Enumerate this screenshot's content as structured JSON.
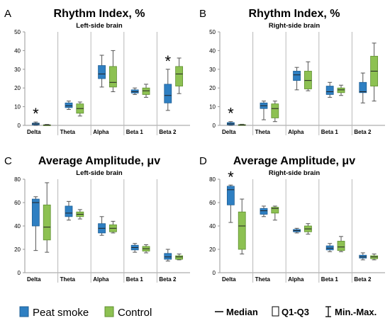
{
  "legend": {
    "peat_smoke": "Peat smoke",
    "control": "Control",
    "median": "Median",
    "quartiles": "Q1-Q3",
    "minmax": "Min.-Max."
  },
  "colors": {
    "peat_smoke": "#2e7fc2",
    "control": "#8dc152",
    "divider": "#b8b8b8",
    "axis": "#999999"
  },
  "chart_data": [
    {
      "panel_letter": "A",
      "type": "boxplot",
      "title": "Rhythm Index, %",
      "subtitle": "Left-side brain",
      "categories": [
        "Delta",
        "Theta",
        "Alpha",
        "Beta 1",
        "Beta 2"
      ],
      "ylim": [
        0,
        50
      ],
      "yticks": [
        0,
        10,
        20,
        30,
        40,
        50
      ],
      "significance": [
        "*",
        "",
        "",
        "",
        "*"
      ],
      "series": [
        {
          "name": "Peat smoke",
          "boxes": [
            {
              "min": 0,
              "q1": 0.3,
              "median": 0.8,
              "q3": 1.2,
              "max": 1.8
            },
            {
              "min": 8.5,
              "q1": 9.5,
              "median": 10.5,
              "q3": 12,
              "max": 13
            },
            {
              "min": 20.5,
              "q1": 25,
              "median": 27.5,
              "q3": 32,
              "max": 37.5
            },
            {
              "min": 16.5,
              "q1": 17.3,
              "median": 18,
              "q3": 19,
              "max": 20
            },
            {
              "min": 8,
              "q1": 12,
              "median": 16,
              "q3": 22,
              "max": 30
            }
          ]
        },
        {
          "name": "Control",
          "boxes": [
            {
              "min": 0,
              "q1": 0.1,
              "median": 0.2,
              "q3": 0.3,
              "max": 0.5
            },
            {
              "min": 5,
              "q1": 6.5,
              "median": 9,
              "q3": 11.5,
              "max": 12.5
            },
            {
              "min": 18,
              "q1": 20.5,
              "median": 23,
              "q3": 31.5,
              "max": 40
            },
            {
              "min": 15,
              "q1": 16.5,
              "median": 18.5,
              "q3": 20,
              "max": 22
            },
            {
              "min": 17,
              "q1": 21,
              "median": 27.5,
              "q3": 31.5,
              "max": 36
            }
          ]
        }
      ]
    },
    {
      "panel_letter": "B",
      "type": "boxplot",
      "title": "Rhythm Index, %",
      "subtitle": "Right-side brain",
      "categories": [
        "Delta",
        "Theta",
        "Alpha",
        "Beta 1",
        "Beta 2"
      ],
      "ylim": [
        0,
        50
      ],
      "yticks": [
        0,
        10,
        20,
        30,
        40,
        50
      ],
      "significance": [
        "*",
        "",
        "",
        "",
        ""
      ],
      "series": [
        {
          "name": "Peat smoke",
          "boxes": [
            {
              "min": 0,
              "q1": 0.3,
              "median": 0.8,
              "q3": 1.5,
              "max": 2
            },
            {
              "min": 3,
              "q1": 9,
              "median": 10.5,
              "q3": 12,
              "max": 13
            },
            {
              "min": 19,
              "q1": 24,
              "median": 27,
              "q3": 29,
              "max": 31
            },
            {
              "min": 15,
              "q1": 16.5,
              "median": 18,
              "q3": 21,
              "max": 23
            },
            {
              "min": 12,
              "q1": 17.5,
              "median": 18,
              "q3": 23,
              "max": 28
            }
          ]
        },
        {
          "name": "Control",
          "boxes": [
            {
              "min": 0,
              "q1": 0.1,
              "median": 0.2,
              "q3": 0.4,
              "max": 0.6
            },
            {
              "min": 2,
              "q1": 4,
              "median": 9,
              "q3": 11.5,
              "max": 13
            },
            {
              "min": 18.5,
              "q1": 19.5,
              "median": 24,
              "q3": 29,
              "max": 34
            },
            {
              "min": 16,
              "q1": 17.5,
              "median": 19,
              "q3": 20,
              "max": 21.5
            },
            {
              "min": 13,
              "q1": 21,
              "median": 29,
              "q3": 37,
              "max": 44
            }
          ]
        }
      ]
    },
    {
      "panel_letter": "C",
      "type": "boxplot",
      "title": "Average Amplitude, μv",
      "subtitle": "Left-side brain",
      "categories": [
        "Delta",
        "Theta",
        "Alpha",
        "Beta 1",
        "Beta 2"
      ],
      "ylim": [
        0,
        80
      ],
      "yticks": [
        0,
        20,
        40,
        60,
        80
      ],
      "significance": [
        "",
        "",
        "",
        "",
        ""
      ],
      "series": [
        {
          "name": "Peat smoke",
          "boxes": [
            {
              "min": 19,
              "q1": 40,
              "median": 60,
              "q3": 63,
              "max": 65
            },
            {
              "min": 45,
              "q1": 48,
              "median": 51,
              "q3": 57,
              "max": 61
            },
            {
              "min": 32,
              "q1": 34,
              "median": 38,
              "q3": 42,
              "max": 48
            },
            {
              "min": 17.5,
              "q1": 19.5,
              "median": 21.5,
              "q3": 23.5,
              "max": 25
            },
            {
              "min": 10,
              "q1": 11.5,
              "median": 13.5,
              "q3": 16.5,
              "max": 20
            }
          ]
        },
        {
          "name": "Control",
          "boxes": [
            {
              "min": 17.5,
              "q1": 28,
              "median": 39,
              "q3": 58,
              "max": 77
            },
            {
              "min": 46,
              "q1": 48,
              "median": 50,
              "q3": 52,
              "max": 54
            },
            {
              "min": 34,
              "q1": 35,
              "median": 38,
              "q3": 41,
              "max": 44
            },
            {
              "min": 17,
              "q1": 18.5,
              "median": 20.5,
              "q3": 22.5,
              "max": 24
            },
            {
              "min": 11,
              "q1": 11.5,
              "median": 13.5,
              "q3": 14.5,
              "max": 16
            }
          ]
        }
      ]
    },
    {
      "panel_letter": "D",
      "type": "boxplot",
      "title": "Average Amplitude, μv",
      "subtitle": "Right-side brain",
      "categories": [
        "Delta",
        "Theta",
        "Alpha",
        "Beta 1",
        "Beta 2"
      ],
      "ylim": [
        0,
        80
      ],
      "yticks": [
        0,
        20,
        40,
        60,
        80
      ],
      "significance": [
        "*",
        "",
        "",
        "",
        ""
      ],
      "series": [
        {
          "name": "Peat smoke",
          "boxes": [
            {
              "min": 43,
              "q1": 58,
              "median": 71,
              "q3": 74,
              "max": 75
            },
            {
              "min": 48,
              "q1": 50,
              "median": 53,
              "q3": 55,
              "max": 57
            },
            {
              "min": 34,
              "q1": 35,
              "median": 36,
              "q3": 37,
              "max": 38
            },
            {
              "min": 18,
              "q1": 19.5,
              "median": 21,
              "q3": 23,
              "max": 25
            },
            {
              "min": 11,
              "q1": 12.5,
              "median": 13.5,
              "q3": 15,
              "max": 17
            }
          ]
        },
        {
          "name": "Control",
          "boxes": [
            {
              "min": 16,
              "q1": 20,
              "median": 40,
              "q3": 52,
              "max": 63
            },
            {
              "min": 45,
              "q1": 51,
              "median": 55,
              "q3": 56,
              "max": 57
            },
            {
              "min": 33,
              "q1": 35,
              "median": 37.5,
              "q3": 40,
              "max": 42
            },
            {
              "min": 18,
              "q1": 19,
              "median": 22,
              "q3": 27,
              "max": 31
            },
            {
              "min": 11,
              "q1": 12,
              "median": 13.5,
              "q3": 14.5,
              "max": 16
            }
          ]
        }
      ]
    }
  ]
}
